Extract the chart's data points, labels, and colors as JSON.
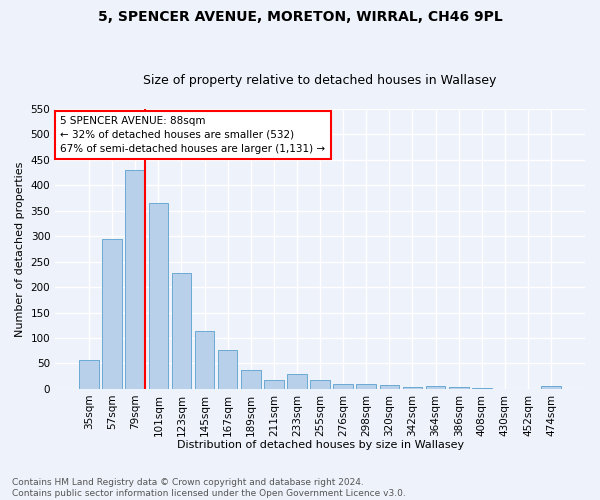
{
  "title1": "5, SPENCER AVENUE, MORETON, WIRRAL, CH46 9PL",
  "title2": "Size of property relative to detached houses in Wallasey",
  "xlabel": "Distribution of detached houses by size in Wallasey",
  "ylabel": "Number of detached properties",
  "bin_labels": [
    "35sqm",
    "57sqm",
    "79sqm",
    "101sqm",
    "123sqm",
    "145sqm",
    "167sqm",
    "189sqm",
    "211sqm",
    "233sqm",
    "255sqm",
    "276sqm",
    "298sqm",
    "320sqm",
    "342sqm",
    "364sqm",
    "386sqm",
    "408sqm",
    "430sqm",
    "452sqm",
    "474sqm"
  ],
  "bar_values": [
    57,
    294,
    430,
    366,
    228,
    113,
    76,
    37,
    17,
    29,
    17,
    10,
    10,
    8,
    3,
    5,
    3,
    1,
    0,
    0,
    5
  ],
  "bar_color": "#b8d0ea",
  "bar_edge_color": "#6aaad4",
  "property_bin_index": 2,
  "annotation_text": "5 SPENCER AVENUE: 88sqm\n← 32% of detached houses are smaller (532)\n67% of semi-detached houses are larger (1,131) →",
  "annotation_box_color": "white",
  "annotation_box_edge_color": "red",
  "vline_color": "red",
  "ylim": [
    0,
    550
  ],
  "yticks": [
    0,
    50,
    100,
    150,
    200,
    250,
    300,
    350,
    400,
    450,
    500,
    550
  ],
  "footer": "Contains HM Land Registry data © Crown copyright and database right 2024.\nContains public sector information licensed under the Open Government Licence v3.0.",
  "bg_color": "#eef2fa",
  "grid_color": "white",
  "title1_fontsize": 10,
  "title2_fontsize": 9,
  "ylabel_fontsize": 8,
  "xlabel_fontsize": 8,
  "tick_fontsize": 7.5,
  "annotation_fontsize": 7.5,
  "footer_fontsize": 6.5
}
